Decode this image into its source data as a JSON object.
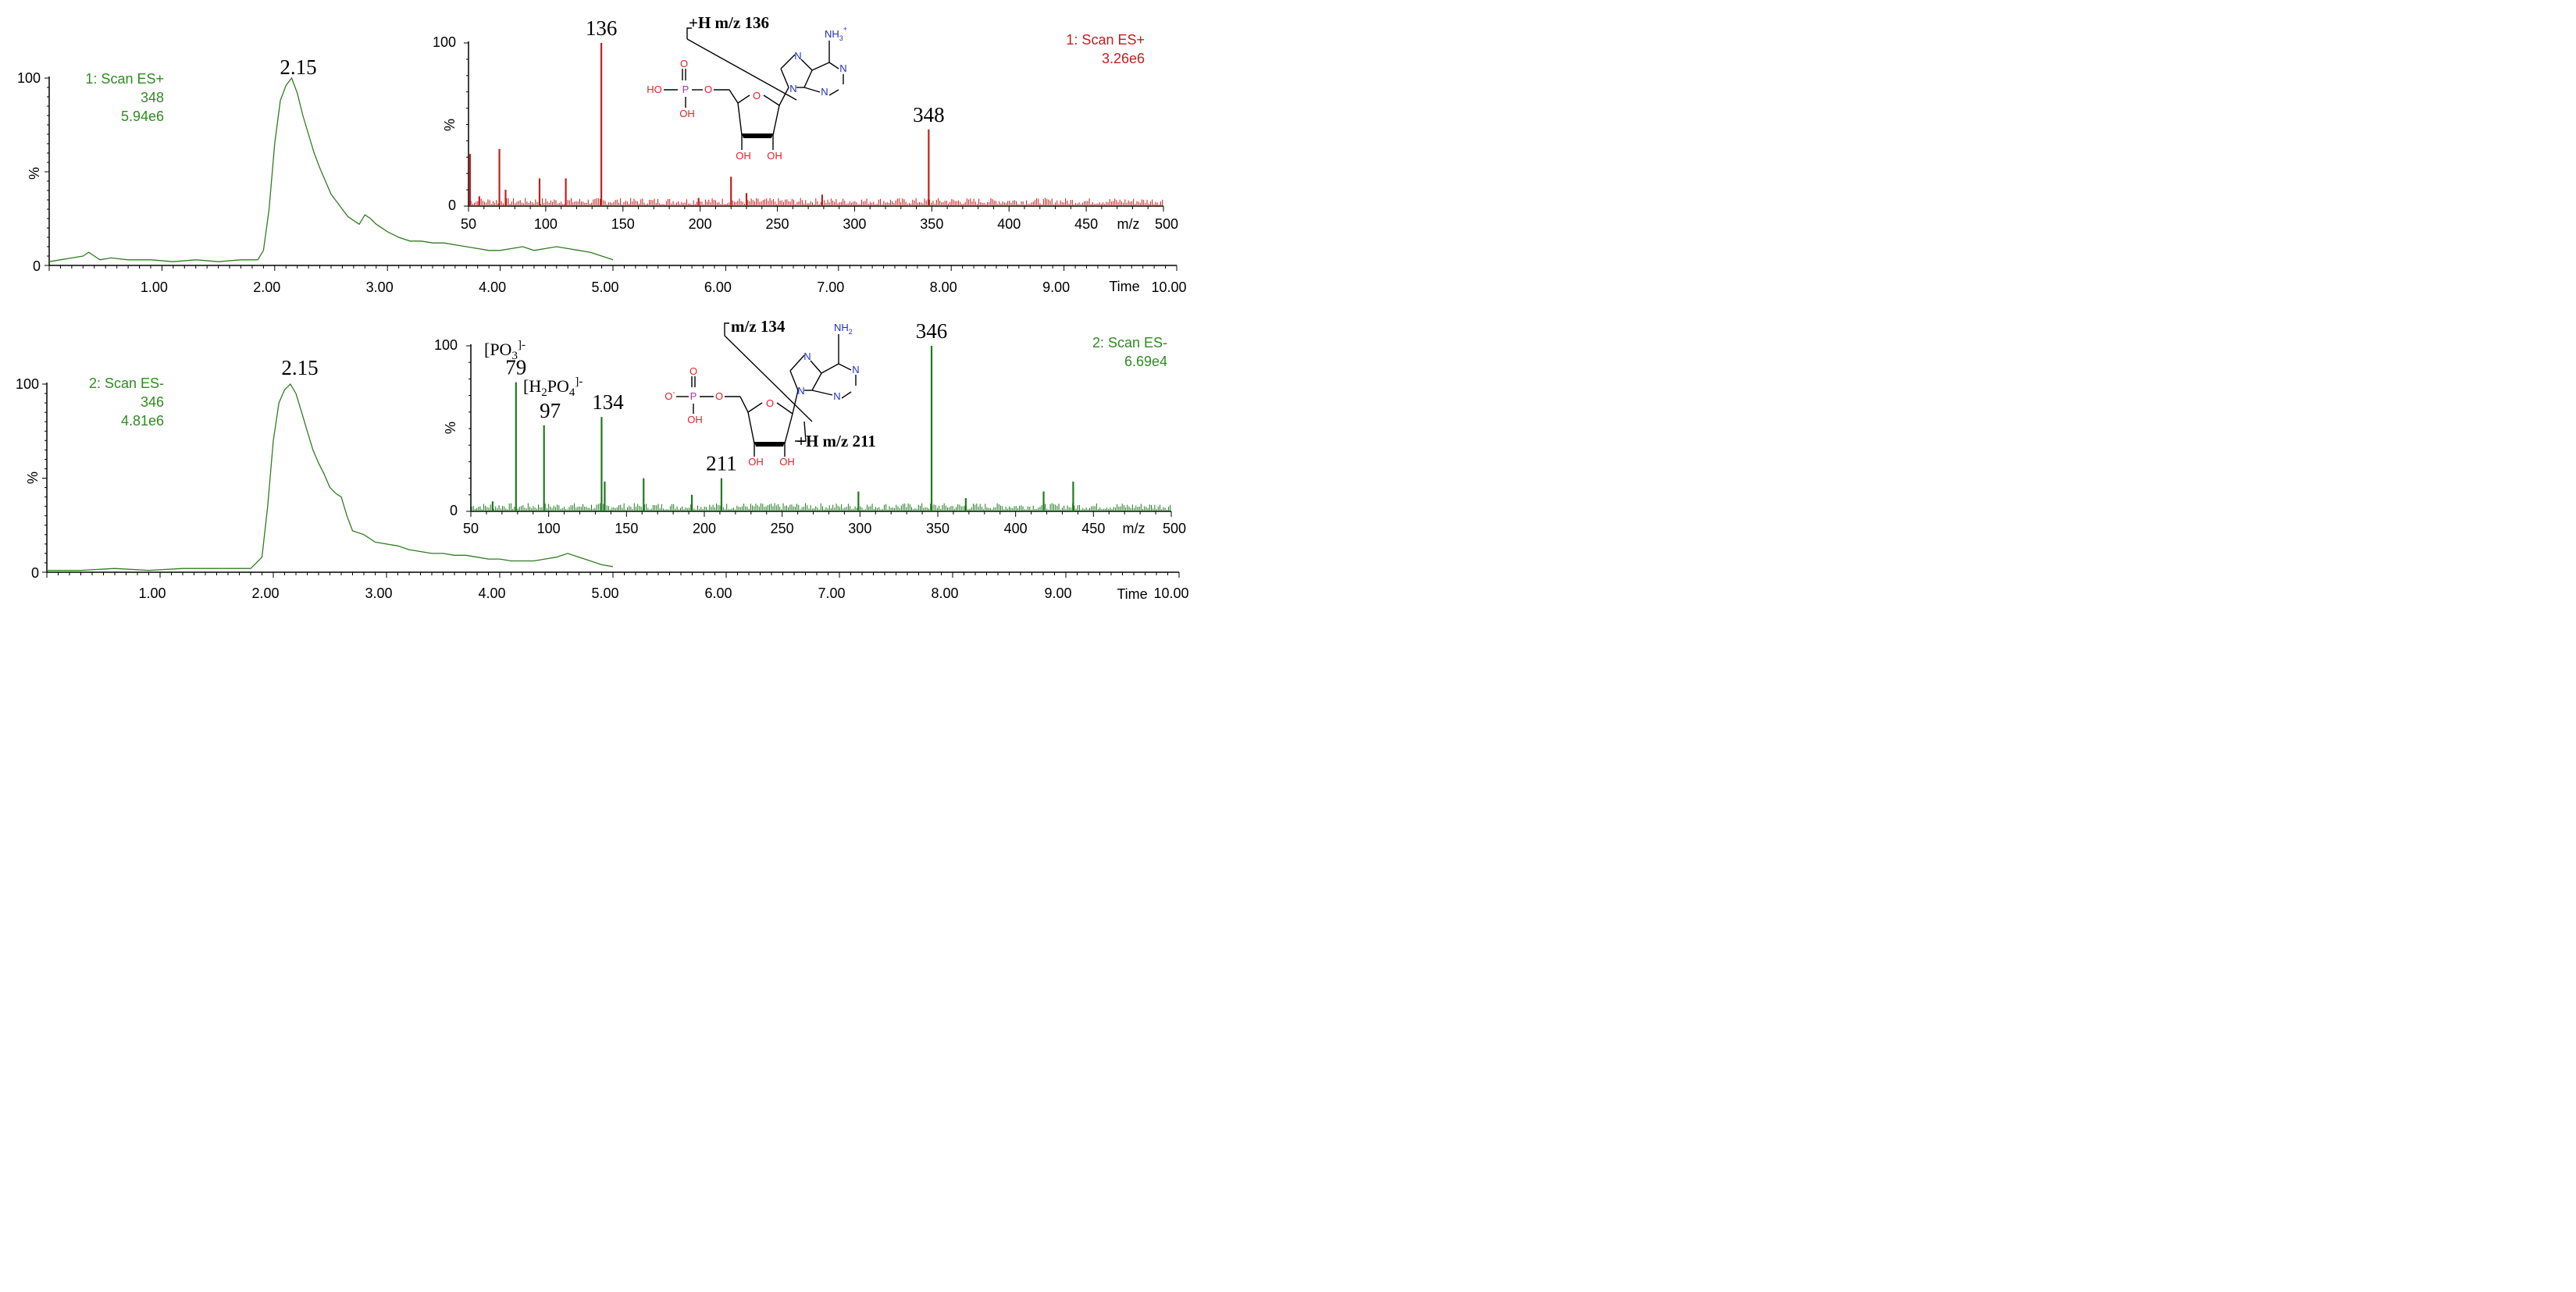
{
  "colors": {
    "top_trace": "#2e7d1f",
    "top_ms": "#c0201f",
    "bottom_trace": "#2e7d1f",
    "bottom_ms": "#1e7a1e",
    "label_green": "#2e8b1f",
    "label_red": "#c0201f",
    "axis": "#000000",
    "mol_red": "#e0202a",
    "mol_blue": "#2030c0",
    "mol_purple": "#b030b0"
  },
  "chart_data": [
    {
      "id": "chrom1",
      "type": "line",
      "peak_label": "2.15",
      "info": [
        "1: Scan ES+",
        "348",
        "5.94e6"
      ],
      "ylabel": "%",
      "xlabel": "Time",
      "xlim": [
        0,
        10
      ],
      "ylim": [
        0,
        100
      ],
      "yticks": [
        "100",
        "0"
      ],
      "xticks": [
        "1.00",
        "2.00",
        "3.00",
        "4.00",
        "5.00",
        "6.00",
        "7.00",
        "8.00",
        "9.00",
        "10.00"
      ],
      "x": [
        0.0,
        0.1,
        0.2,
        0.3,
        0.35,
        0.4,
        0.45,
        0.55,
        0.7,
        0.9,
        1.1,
        1.3,
        1.5,
        1.7,
        1.85,
        1.9,
        1.95,
        2.0,
        2.05,
        2.1,
        2.15,
        2.2,
        2.25,
        2.3,
        2.35,
        2.4,
        2.45,
        2.5,
        2.55,
        2.6,
        2.65,
        2.7,
        2.75,
        2.8,
        2.85,
        2.9,
        3.0,
        3.1,
        3.2,
        3.3,
        3.4,
        3.5,
        3.6,
        3.7,
        3.8,
        3.9,
        4.0,
        4.1,
        4.2,
        4.3,
        4.4,
        4.5,
        4.6,
        4.7,
        4.8,
        4.9,
        5.0
      ],
      "y": [
        2,
        3,
        4,
        5,
        7,
        5,
        3,
        4,
        3,
        3,
        2,
        3,
        2,
        3,
        3,
        8,
        30,
        65,
        88,
        96,
        100,
        92,
        80,
        70,
        60,
        52,
        45,
        38,
        34,
        30,
        26,
        24,
        22,
        27,
        25,
        22,
        18,
        15,
        13,
        13,
        12,
        12,
        11,
        10,
        9,
        8,
        8,
        9,
        10,
        8,
        9,
        10,
        9,
        8,
        7,
        5,
        3
      ]
    },
    {
      "id": "ms1",
      "type": "bar",
      "info": [
        "1: Scan ES+",
        "3.26e6"
      ],
      "ylabel": "%",
      "xlabel": "m/z",
      "xlim": [
        50,
        500
      ],
      "ylim": [
        0,
        100
      ],
      "yticks": [
        "100",
        "0"
      ],
      "xticks": [
        "50",
        "100",
        "150",
        "200",
        "250",
        "300",
        "350",
        "400",
        "450",
        "500"
      ],
      "peaks_mz": [
        51,
        57,
        70,
        74,
        96,
        113,
        136,
        199,
        220,
        230,
        279,
        348
      ],
      "peaks_int": [
        32,
        6,
        35,
        10,
        17,
        17,
        100,
        5,
        18,
        8,
        7,
        47
      ],
      "peak_labels": [
        {
          "text": "136",
          "mz": 136
        },
        {
          "text": "348",
          "mz": 348
        }
      ]
    },
    {
      "id": "chrom2",
      "type": "line",
      "peak_label": "2.15",
      "info": [
        "2: Scan ES-",
        "346",
        "4.81e6"
      ],
      "ylabel": "%",
      "xlabel": "Time",
      "xlim": [
        0,
        10
      ],
      "ylim": [
        0,
        100
      ],
      "yticks": [
        "100",
        "0"
      ],
      "xticks": [
        "1.00",
        "2.00",
        "3.00",
        "4.00",
        "5.00",
        "6.00",
        "7.00",
        "8.00",
        "9.00",
        "10.00"
      ],
      "x": [
        0.0,
        0.3,
        0.6,
        0.9,
        1.2,
        1.5,
        1.8,
        1.9,
        1.95,
        2.0,
        2.05,
        2.1,
        2.15,
        2.2,
        2.25,
        2.3,
        2.35,
        2.4,
        2.45,
        2.5,
        2.55,
        2.6,
        2.65,
        2.7,
        2.8,
        2.9,
        3.0,
        3.1,
        3.2,
        3.3,
        3.4,
        3.5,
        3.6,
        3.7,
        3.8,
        3.9,
        4.0,
        4.1,
        4.2,
        4.3,
        4.4,
        4.5,
        4.6,
        4.7,
        4.8,
        4.9,
        5.0
      ],
      "y": [
        1,
        1,
        2,
        1,
        2,
        2,
        2,
        8,
        35,
        70,
        90,
        97,
        100,
        95,
        85,
        75,
        65,
        58,
        52,
        45,
        42,
        40,
        30,
        22,
        20,
        16,
        15,
        14,
        12,
        11,
        10,
        10,
        9,
        9,
        8,
        7,
        7,
        6,
        6,
        6,
        7,
        8,
        10,
        8,
        6,
        4,
        3
      ]
    },
    {
      "id": "ms2",
      "type": "bar",
      "info": [
        "2: Scan ES-",
        "6.69e4"
      ],
      "ylabel": "%",
      "xlabel": "m/z",
      "xlim": [
        50,
        500
      ],
      "ylim": [
        0,
        100
      ],
      "yticks": [
        "100",
        "0"
      ],
      "xticks": [
        "50",
        "100",
        "150",
        "200",
        "250",
        "300",
        "350",
        "400",
        "450",
        "500"
      ],
      "peaks_mz": [
        64,
        79,
        97,
        134,
        136,
        161,
        192,
        211,
        299,
        346,
        368,
        418,
        437
      ],
      "peaks_int": [
        6,
        78,
        52,
        57,
        18,
        20,
        10,
        20,
        12,
        100,
        8,
        12,
        18
      ],
      "peak_labels": [
        {
          "text": "79",
          "mz": 79
        },
        {
          "text": "97",
          "mz": 97
        },
        {
          "text": "134",
          "mz": 134
        },
        {
          "text": "211",
          "mz": 211
        },
        {
          "text": "346",
          "mz": 346
        }
      ]
    }
  ],
  "annotations": {
    "po3": "[PO",
    "po3_sub": "3",
    "po3_sup": "]-",
    "h2po4_a": "[H",
    "h2po4_sub1": "2",
    "h2po4_b": "PO",
    "h2po4_sub2": "4",
    "h2po4_sup": "]-",
    "top_frag": "+H m/z 136",
    "bottom_frag_a": "m/z 134",
    "bottom_frag_b": "+H m/z 211"
  },
  "molecule": {
    "top_nh3": "NH",
    "top_nh3_sub": "3",
    "top_nh3_sup": "+",
    "bottom_nh2": "NH",
    "bottom_nh2_sub": "2",
    "n": "N",
    "o": "O",
    "p": "P",
    "ho": "HO",
    "oh": "OH",
    "ominus": "O",
    "ominus_sup": "-"
  }
}
